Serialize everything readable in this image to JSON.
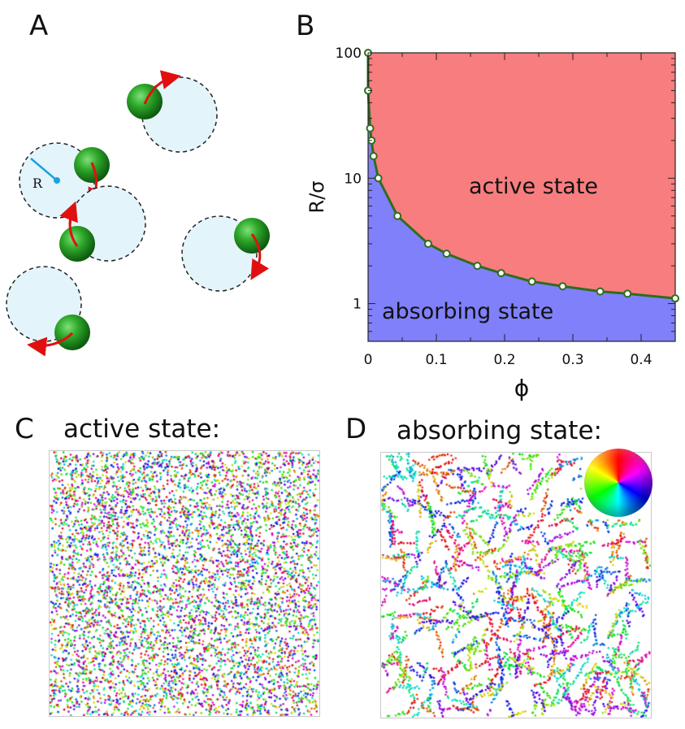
{
  "panels": {
    "a": {
      "letter": "A",
      "radius_label": "R"
    },
    "b": {
      "letter": "B"
    },
    "c": {
      "letter": "C",
      "heading": "active state:"
    },
    "d": {
      "letter": "D",
      "heading": "absorbing state:"
    }
  },
  "chart_data": {
    "type": "line",
    "xlabel": "ϕ",
    "ylabel": "R/σ",
    "xlim": [
      0,
      0.45
    ],
    "ylim": [
      0.5,
      100
    ],
    "log_y": true,
    "x_ticks": [
      0,
      0.1,
      0.2,
      0.3,
      0.4
    ],
    "x_tick_labels": [
      "0",
      "0.1",
      "0.2",
      "0.3",
      "0.4"
    ],
    "y_ticks": [
      1,
      10,
      100
    ],
    "y_tick_labels": [
      "1",
      "10",
      "100"
    ],
    "region_labels": {
      "upper": "active state",
      "lower": "absorbing state"
    },
    "colors": {
      "active": "#f87d7e",
      "absorbing": "#8080fb",
      "line": "#2e6d1e",
      "marker_fill": "#ffffff"
    },
    "series": [
      {
        "x": [
          0.0,
          0.0,
          0.003,
          0.005,
          0.008,
          0.015,
          0.043,
          0.088,
          0.115,
          0.16,
          0.195,
          0.24,
          0.285,
          0.34,
          0.38,
          0.45
        ],
        "y": [
          100,
          50,
          25,
          20,
          15,
          10,
          5,
          3,
          2.5,
          2,
          1.75,
          1.5,
          1.375,
          1.25,
          1.2,
          1.1
        ]
      }
    ]
  }
}
